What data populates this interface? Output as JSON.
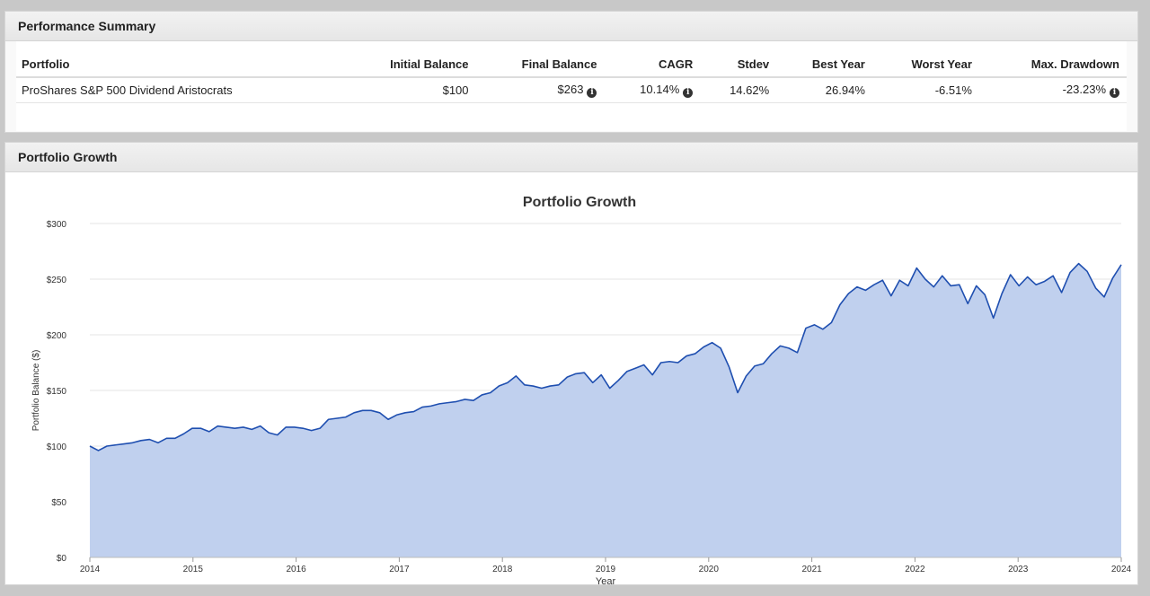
{
  "summary": {
    "title": "Performance Summary",
    "columns": [
      "Portfolio",
      "Initial Balance",
      "Final Balance",
      "CAGR",
      "Stdev",
      "Best Year",
      "Worst Year",
      "Max. Drawdown"
    ],
    "row": {
      "portfolio": "ProShares S&P 500 Dividend Aristocrats",
      "initial_balance": "$100",
      "final_balance": "$263",
      "cagr": "10.14%",
      "stdev": "14.62%",
      "best_year": "26.94%",
      "worst_year": "-6.51%",
      "max_drawdown": "-23.23%"
    },
    "info_icon": "info-circle-icon"
  },
  "growth": {
    "title": "Portfolio Growth"
  },
  "colors": {
    "line": "#1f4fb0",
    "area": "#c0d0ee",
    "grid": "#e6e6e6"
  },
  "chart_data": {
    "type": "area",
    "title": "Portfolio Growth",
    "xlabel": "Year",
    "ylabel": "Portfolio Balance ($)",
    "ylim": [
      0,
      300
    ],
    "xlim": [
      2014,
      2024
    ],
    "y_ticks": [
      "$0",
      "$50",
      "$100",
      "$150",
      "$200",
      "$250",
      "$300"
    ],
    "x_ticks": [
      "2014",
      "2015",
      "2016",
      "2017",
      "2018",
      "2019",
      "2020",
      "2021",
      "2022",
      "2023",
      "2024"
    ],
    "grid": true,
    "series": [
      {
        "values": [
          100,
          96,
          100,
          101,
          102,
          103,
          105,
          106,
          103,
          107,
          107,
          111,
          116,
          116,
          113,
          118,
          117,
          116,
          117,
          115,
          118,
          112,
          110,
          117,
          117,
          116,
          114,
          116,
          124,
          125,
          126,
          130,
          132,
          132,
          130,
          124,
          128,
          130,
          131,
          135,
          136,
          138,
          139,
          140,
          142,
          141,
          146,
          148,
          154,
          157,
          163,
          155,
          154,
          152,
          154,
          155,
          162,
          165,
          166,
          157,
          164,
          152,
          159,
          167,
          170,
          173,
          164,
          175,
          176,
          175,
          181,
          183,
          189,
          193,
          188,
          171,
          148,
          163,
          172,
          174,
          183,
          190,
          188,
          184,
          206,
          209,
          205,
          211,
          227,
          237,
          243,
          240,
          245,
          249,
          235,
          249,
          244,
          260,
          250,
          243,
          253,
          244,
          245,
          228,
          244,
          236,
          215,
          237,
          254,
          244,
          252,
          245,
          248,
          253,
          238,
          256,
          264,
          257,
          242,
          234,
          251,
          263
        ]
      }
    ]
  }
}
